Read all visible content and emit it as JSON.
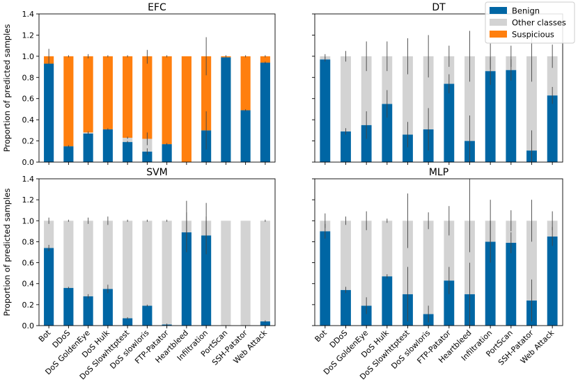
{
  "colors": {
    "benign": "#0066a4",
    "other": "#d3d3d3",
    "suspicious": "#ff7f0e",
    "errorbar": "#444444"
  },
  "legend": {
    "position": "top-right",
    "entries": [
      {
        "key": "benign",
        "label": "Benign"
      },
      {
        "key": "other",
        "label": "Other classes"
      },
      {
        "key": "suspicious",
        "label": "Suspicious"
      }
    ]
  },
  "chart_data": [
    {
      "type": "bar",
      "stacked": true,
      "title": "EFC",
      "ylabel": "Proportion of predicted samples",
      "ylim": [
        0,
        1.4
      ],
      "yticks": [
        "0.0",
        "0.2",
        "0.4",
        "0.6",
        "0.8",
        "1.0",
        "1.2",
        "1.4"
      ],
      "categories": [
        "Bot",
        "DDoS",
        "DoS GoldenEye",
        "DoS Hulk",
        "DoS Slowhttptest",
        "DoS slowloris",
        "FTP-Patator",
        "Heartbleed",
        "Infiltration",
        "PortScan",
        "SSH-Patator",
        "Web Attack"
      ],
      "series": [
        {
          "name": "Benign",
          "key": "benign",
          "values": [
            0.93,
            0.15,
            0.27,
            0.31,
            0.19,
            0.1,
            0.17,
            0.0,
            0.3,
            0.99,
            0.49,
            0.94
          ]
        },
        {
          "name": "Other classes",
          "key": "other",
          "values": [
            0.0,
            0.0,
            0.01,
            0.0,
            0.04,
            0.12,
            0.0,
            0.0,
            0.0,
            0.0,
            0.0,
            0.0
          ]
        },
        {
          "name": "Suspicious",
          "key": "suspicious",
          "values": [
            0.07,
            0.85,
            0.72,
            0.69,
            0.77,
            0.78,
            0.83,
            1.0,
            0.7,
            0.01,
            0.51,
            0.06
          ]
        }
      ],
      "error_bars": [
        {
          "at": [
            0.93,
            0.93,
            0.93,
            0.93,
            0.93,
            0.93,
            0.93,
            0.93,
            0.93,
            0.93,
            0.93,
            0.93
          ],
          "lo": [
            0.93,
            0.93,
            0.93,
            0.93,
            0.93,
            0.93,
            0.93,
            0.93,
            0.93,
            0.93,
            0.93,
            0.93
          ],
          "hi": [
            0.93,
            0.93,
            0.93,
            0.93,
            0.93,
            0.93,
            0.93,
            0.93,
            0.93,
            0.93,
            0.93,
            0.93
          ]
        },
        {
          "at": [
            1.0,
            1.0,
            1.0,
            1.0,
            1.0,
            1.0,
            1.0,
            1.0,
            1.0,
            1.0,
            1.0,
            1.0
          ],
          "lo": [
            0.93,
            0.99,
            0.98,
            0.99,
            0.99,
            0.93,
            0.99,
            1.0,
            0.82,
            0.99,
            0.99,
            0.99
          ],
          "hi": [
            1.07,
            1.01,
            1.02,
            1.01,
            1.01,
            1.06,
            1.01,
            1.0,
            1.18,
            1.01,
            1.01,
            1.01
          ]
        },
        {
          "at": [
            0.93,
            0.15,
            0.27,
            0.31,
            0.19,
            0.1,
            0.17,
            0.0,
            0.3,
            0.99,
            0.49,
            0.94
          ],
          "lo": [
            0.93,
            0.14,
            0.26,
            0.3,
            0.18,
            0.07,
            0.16,
            0.0,
            0.12,
            0.99,
            0.48,
            0.93
          ],
          "hi": [
            0.93,
            0.16,
            0.28,
            0.32,
            0.2,
            0.13,
            0.18,
            0.0,
            0.48,
            0.99,
            0.5,
            0.95
          ]
        },
        {
          "at": [
            0.93,
            0.15,
            0.28,
            0.31,
            0.23,
            0.22,
            0.17,
            0.0,
            0.3,
            0.99,
            0.49,
            0.94
          ],
          "lo": [
            0.93,
            0.15,
            0.27,
            0.31,
            0.22,
            0.16,
            0.17,
            0.0,
            0.3,
            0.99,
            0.49,
            0.94
          ],
          "hi": [
            0.93,
            0.15,
            0.29,
            0.31,
            0.24,
            0.28,
            0.17,
            0.0,
            0.3,
            0.99,
            0.49,
            0.94
          ]
        }
      ]
    },
    {
      "type": "bar",
      "stacked": true,
      "title": "DT",
      "ylim": [
        0,
        1.4
      ],
      "categories": [
        "Bot",
        "DDoS",
        "DoS GoldenEye",
        "DoS Hulk",
        "DoS Slowhttptest",
        "DoS slowloris",
        "FTP-Patator",
        "Heartbleed",
        "Infiltration",
        "PortScan",
        "SSH-Patator",
        "Web Attack"
      ],
      "series": [
        {
          "name": "Benign",
          "key": "benign",
          "values": [
            0.97,
            0.29,
            0.35,
            0.55,
            0.26,
            0.31,
            0.74,
            0.2,
            0.86,
            0.87,
            0.11,
            0.63
          ]
        },
        {
          "name": "Other classes",
          "key": "other",
          "values": [
            0.03,
            0.71,
            0.65,
            0.45,
            0.74,
            0.69,
            0.26,
            0.8,
            0.14,
            0.13,
            0.89,
            0.37
          ]
        }
      ],
      "error_bars": [
        {
          "at": [
            0.97,
            0.29,
            0.35,
            0.55,
            0.26,
            0.31,
            0.74,
            0.2,
            0.86,
            0.87,
            0.11,
            0.63
          ],
          "lo": [
            0.95,
            0.26,
            0.22,
            0.42,
            0.14,
            0.11,
            0.65,
            0.0,
            0.73,
            0.77,
            0.0,
            0.55
          ],
          "hi": [
            0.99,
            0.32,
            0.48,
            0.68,
            0.38,
            0.51,
            0.83,
            0.44,
            0.99,
            0.97,
            0.3,
            0.71
          ]
        },
        {
          "at": [
            1.0,
            1.0,
            1.0,
            1.0,
            1.0,
            1.0,
            1.0,
            1.0,
            1.0,
            1.0,
            1.0,
            1.0
          ],
          "lo": [
            0.98,
            0.95,
            0.86,
            0.86,
            0.83,
            0.8,
            0.9,
            0.76,
            0.88,
            0.9,
            0.76,
            0.89
          ],
          "hi": [
            1.02,
            1.05,
            1.14,
            1.14,
            1.17,
            1.2,
            1.1,
            1.24,
            1.12,
            1.1,
            1.24,
            1.11
          ]
        }
      ]
    },
    {
      "type": "bar",
      "stacked": true,
      "title": "SVM",
      "ylabel": "Proportion of predicted samples",
      "ylim": [
        0,
        1.4
      ],
      "yticks": [
        "0.0",
        "0.2",
        "0.4",
        "0.6",
        "0.8",
        "1.0",
        "1.2",
        "1.4"
      ],
      "categories": [
        "Bot",
        "DDoS",
        "DoS GoldenEye",
        "DoS Hulk",
        "DoS Slowhttptest",
        "DoS slowloris",
        "FTP-Patator",
        "Heartbleed",
        "Infiltration",
        "PortScan",
        "SSH-Patator",
        "Web Attack"
      ],
      "series": [
        {
          "name": "Benign",
          "key": "benign",
          "values": [
            0.74,
            0.36,
            0.28,
            0.35,
            0.07,
            0.19,
            0.01,
            0.89,
            0.86,
            0.0,
            0.0,
            0.04
          ]
        },
        {
          "name": "Other classes",
          "key": "other",
          "values": [
            0.26,
            0.64,
            0.72,
            0.65,
            0.93,
            0.81,
            0.99,
            0.11,
            0.14,
            1.0,
            1.0,
            0.96
          ]
        }
      ],
      "error_bars": [
        {
          "at": [
            0.74,
            0.36,
            0.28,
            0.35,
            0.07,
            0.19,
            0.01,
            0.89,
            0.86,
            0.0,
            0.0,
            0.04
          ],
          "lo": [
            0.71,
            0.35,
            0.26,
            0.31,
            0.06,
            0.18,
            0.0,
            0.7,
            0.68,
            0.0,
            0.0,
            0.03
          ],
          "hi": [
            0.77,
            0.37,
            0.3,
            0.39,
            0.08,
            0.2,
            0.02,
            1.08,
            1.04,
            0.0,
            0.0,
            0.05
          ]
        },
        {
          "at": [
            1.0,
            1.0,
            1.0,
            1.0,
            1.0,
            1.0,
            1.0,
            1.0,
            1.0,
            1.0,
            1.0,
            1.0
          ],
          "lo": [
            0.97,
            0.99,
            0.97,
            0.96,
            0.99,
            0.99,
            0.99,
            0.81,
            0.83,
            1.0,
            1.0,
            0.99
          ],
          "hi": [
            1.03,
            1.01,
            1.03,
            1.04,
            1.01,
            1.01,
            1.01,
            1.19,
            1.17,
            1.0,
            1.0,
            1.01
          ]
        }
      ]
    },
    {
      "type": "bar",
      "stacked": true,
      "title": "MLP",
      "ylim": [
        0,
        1.4
      ],
      "categories": [
        "Bot",
        "DDoS",
        "DoS GoldenEye",
        "DoS Hulk",
        "DoS Slowhttptest",
        "DoS slowloris",
        "FTP-Patator",
        "Heartbleed",
        "Infiltration",
        "PortScan",
        "SSH-Patator",
        "Web Attack"
      ],
      "series": [
        {
          "name": "Benign",
          "key": "benign",
          "values": [
            0.9,
            0.34,
            0.19,
            0.47,
            0.3,
            0.11,
            0.43,
            0.3,
            0.8,
            0.79,
            0.24,
            0.85
          ]
        },
        {
          "name": "Other classes",
          "key": "other",
          "values": [
            0.1,
            0.66,
            0.81,
            0.53,
            0.7,
            0.89,
            0.57,
            0.7,
            0.2,
            0.21,
            0.76,
            0.15
          ]
        }
      ],
      "error_bars": [
        {
          "at": [
            0.9,
            0.34,
            0.19,
            0.47,
            0.3,
            0.11,
            0.43,
            0.3,
            0.8,
            0.79,
            0.24,
            0.85
          ],
          "lo": [
            0.83,
            0.31,
            0.11,
            0.45,
            0.04,
            0.03,
            0.3,
            0.0,
            0.6,
            0.69,
            0.04,
            0.76
          ],
          "hi": [
            0.97,
            0.37,
            0.27,
            0.49,
            0.56,
            0.19,
            0.56,
            0.6,
            1.0,
            0.89,
            0.44,
            0.94
          ]
        },
        {
          "at": [
            1.0,
            1.0,
            1.0,
            1.0,
            1.0,
            1.0,
            1.0,
            1.0,
            1.0,
            1.0,
            1.0,
            1.0
          ],
          "lo": [
            0.93,
            0.96,
            0.91,
            0.98,
            0.74,
            0.92,
            0.86,
            0.7,
            0.8,
            0.9,
            0.8,
            0.91
          ],
          "hi": [
            1.07,
            1.04,
            1.09,
            1.02,
            1.26,
            1.08,
            1.14,
            1.4,
            1.2,
            1.1,
            1.2,
            1.09
          ]
        }
      ]
    }
  ]
}
